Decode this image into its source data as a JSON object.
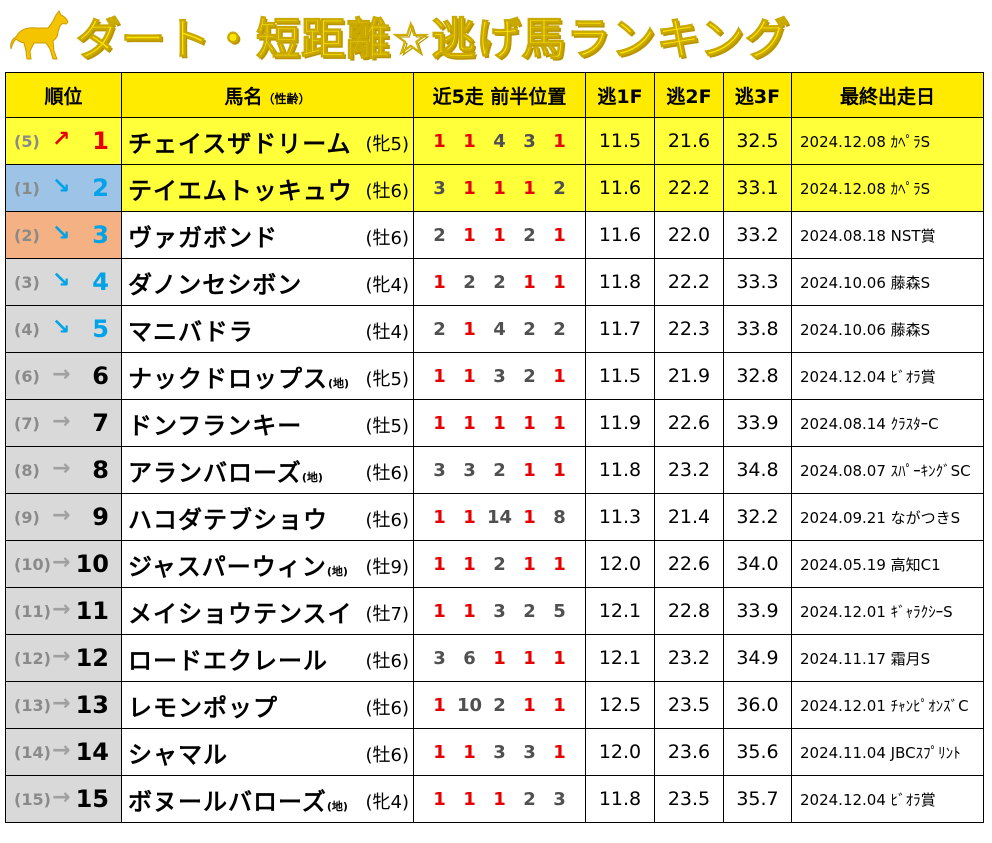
{
  "title": "ダート・短距離☆逃げ馬ランキング",
  "headers": {
    "rank": "順位",
    "name": "馬名",
    "name_sub": "（性齢）",
    "positions": "近5走 前半位置",
    "f1": "逃1F",
    "f2": "逃2F",
    "f3": "逃3F",
    "last": "最終出走日"
  },
  "colors": {
    "header": "#ffeb00",
    "highlight": "#ffff3a",
    "up": "#e60000",
    "down": "#00a2e8",
    "prev1": "#9dc3e6",
    "prev2": "#f4b183",
    "stay": "#d9d9d9"
  },
  "rows": [
    {
      "prev": "(5)",
      "arrow": "↗",
      "trend": "up",
      "rank": "1",
      "name": "チェイスザドリーム",
      "chiho": "",
      "sex": "(牝5)",
      "pos": [
        "1",
        "1",
        "4",
        "3",
        "1"
      ],
      "f1": "11.5",
      "f2": "21.6",
      "f3": "32.5",
      "last": "2024.12.08 ｶﾍﾟﾗS",
      "hl": true
    },
    {
      "prev": "(1)",
      "arrow": "↘",
      "trend": "down",
      "rank": "2",
      "name": "テイエムトッキュウ",
      "chiho": "",
      "sex": "(牡6)",
      "pos": [
        "3",
        "1",
        "1",
        "1",
        "2"
      ],
      "f1": "11.6",
      "f2": "22.2",
      "f3": "33.1",
      "last": "2024.12.08 ｶﾍﾟﾗS",
      "hl": true
    },
    {
      "prev": "(2)",
      "arrow": "↘",
      "trend": "down",
      "rank": "3",
      "name": "ヴァガボンド",
      "chiho": "",
      "sex": "(牡6)",
      "pos": [
        "2",
        "1",
        "1",
        "2",
        "1"
      ],
      "f1": "11.6",
      "f2": "22.0",
      "f3": "33.2",
      "last": "2024.08.18 NST賞",
      "hl": false
    },
    {
      "prev": "(3)",
      "arrow": "↘",
      "trend": "down",
      "rank": "4",
      "name": "ダノンセシボン",
      "chiho": "",
      "sex": "(牝4)",
      "pos": [
        "1",
        "2",
        "2",
        "1",
        "1"
      ],
      "f1": "11.8",
      "f2": "22.2",
      "f3": "33.3",
      "last": "2024.10.06 藤森S",
      "hl": false
    },
    {
      "prev": "(4)",
      "arrow": "↘",
      "trend": "down",
      "rank": "5",
      "name": "マニバドラ",
      "chiho": "",
      "sex": "(牡4)",
      "pos": [
        "2",
        "1",
        "4",
        "2",
        "2"
      ],
      "f1": "11.7",
      "f2": "22.3",
      "f3": "33.8",
      "last": "2024.10.06 藤森S",
      "hl": false
    },
    {
      "prev": "(6)",
      "arrow": "→",
      "trend": "stay",
      "rank": "6",
      "name": "ナックドロップス",
      "chiho": "(地)",
      "sex": "(牝5)",
      "pos": [
        "1",
        "1",
        "3",
        "2",
        "1"
      ],
      "f1": "11.5",
      "f2": "21.9",
      "f3": "32.8",
      "last": "2024.12.04 ﾋﾞｵﾗ賞",
      "hl": false
    },
    {
      "prev": "(7)",
      "arrow": "→",
      "trend": "stay",
      "rank": "7",
      "name": "ドンフランキー",
      "chiho": "",
      "sex": "(牡5)",
      "pos": [
        "1",
        "1",
        "1",
        "1",
        "1"
      ],
      "f1": "11.9",
      "f2": "22.6",
      "f3": "33.9",
      "last": "2024.08.14 ｸﾗｽﾀｰC",
      "hl": false
    },
    {
      "prev": "(8)",
      "arrow": "→",
      "trend": "stay",
      "rank": "8",
      "name": "アランバローズ",
      "chiho": "(地)",
      "sex": "(牡6)",
      "pos": [
        "3",
        "3",
        "2",
        "1",
        "1"
      ],
      "f1": "11.8",
      "f2": "23.2",
      "f3": "34.8",
      "last": "2024.08.07 ｽﾊﾟｰｷﾝｸﾞSC",
      "hl": false
    },
    {
      "prev": "(9)",
      "arrow": "→",
      "trend": "stay",
      "rank": "9",
      "name": "ハコダテブショウ",
      "chiho": "",
      "sex": "(牡6)",
      "pos": [
        "1",
        "1",
        "14",
        "1",
        "8"
      ],
      "f1": "11.3",
      "f2": "21.4",
      "f3": "32.2",
      "last": "2024.09.21 ながつきS",
      "hl": false
    },
    {
      "prev": "(10)",
      "arrow": "→",
      "trend": "stay",
      "rank": "10",
      "name": "ジャスパーウィン",
      "chiho": "(地)",
      "sex": "(牡9)",
      "pos": [
        "1",
        "1",
        "2",
        "1",
        "1"
      ],
      "f1": "12.0",
      "f2": "22.6",
      "f3": "34.0",
      "last": "2024.05.19 高知C1",
      "hl": false
    },
    {
      "prev": "(11)",
      "arrow": "→",
      "trend": "stay",
      "rank": "11",
      "name": "メイショウテンスイ",
      "chiho": "",
      "sex": "(牡7)",
      "pos": [
        "1",
        "1",
        "3",
        "2",
        "5"
      ],
      "f1": "12.1",
      "f2": "22.8",
      "f3": "33.9",
      "last": "2024.12.01 ｷﾞｬﾗｸｼｰS",
      "hl": false
    },
    {
      "prev": "(12)",
      "arrow": "→",
      "trend": "stay",
      "rank": "12",
      "name": "ロードエクレール",
      "chiho": "",
      "sex": "(牡6)",
      "pos": [
        "3",
        "6",
        "1",
        "1",
        "1"
      ],
      "f1": "12.1",
      "f2": "23.2",
      "f3": "34.9",
      "last": "2024.11.17 霜月S",
      "hl": false
    },
    {
      "prev": "(13)",
      "arrow": "→",
      "trend": "stay",
      "rank": "13",
      "name": "レモンポップ",
      "chiho": "",
      "sex": "(牡6)",
      "pos": [
        "1",
        "10",
        "2",
        "1",
        "1"
      ],
      "f1": "12.5",
      "f2": "23.5",
      "f3": "36.0",
      "last": "2024.12.01 ﾁｬﾝﾋﾟｵﾝｽﾞC",
      "hl": false
    },
    {
      "prev": "(14)",
      "arrow": "→",
      "trend": "stay",
      "rank": "14",
      "name": "シャマル",
      "chiho": "",
      "sex": "(牡6)",
      "pos": [
        "1",
        "1",
        "3",
        "3",
        "1"
      ],
      "f1": "12.0",
      "f2": "23.6",
      "f3": "35.6",
      "last": "2024.11.04 JBCｽﾌﾟﾘﾝﾄ",
      "hl": false
    },
    {
      "prev": "(15)",
      "arrow": "→",
      "trend": "stay",
      "rank": "15",
      "name": "ボヌールバローズ",
      "chiho": "(地)",
      "sex": "(牝4)",
      "pos": [
        "1",
        "1",
        "1",
        "2",
        "3"
      ],
      "f1": "11.8",
      "f2": "23.5",
      "f3": "35.7",
      "last": "2024.12.04 ﾋﾞｵﾗ賞",
      "hl": false
    }
  ]
}
